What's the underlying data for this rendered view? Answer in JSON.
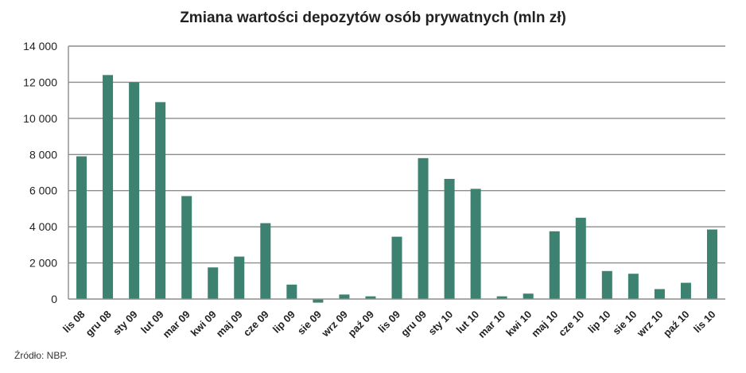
{
  "chart_data": {
    "type": "bar",
    "title": "Zmiana wartości depozytów osób prywatnych (mln zł)",
    "xlabel": "",
    "ylabel": "",
    "ylim": [
      0,
      14000
    ],
    "yticks": [
      0,
      2000,
      4000,
      6000,
      8000,
      10000,
      12000,
      14000
    ],
    "ytick_labels": [
      "0",
      "2 000",
      "4 000",
      "6 000",
      "8 000",
      "10 000",
      "12 000",
      "14 000"
    ],
    "grid": true,
    "legend": "none",
    "color": "#3d8270",
    "categories": [
      "lis 08",
      "gru 08",
      "sty 09",
      "lut 09",
      "mar 09",
      "kwi 09",
      "maj 09",
      "cze 09",
      "lip 09",
      "sie 09",
      "wrz 09",
      "paź 09",
      "lis 09",
      "gru 09",
      "sty 10",
      "lut 10",
      "mar 10",
      "kwi 10",
      "maj 10",
      "cze 10",
      "lip 10",
      "sie 10",
      "wrz 10",
      "paź 10",
      "lis 10"
    ],
    "values": [
      7900,
      12400,
      12000,
      10900,
      5700,
      1750,
      2350,
      4200,
      800,
      -200,
      250,
      150,
      3450,
      7800,
      6650,
      6100,
      150,
      300,
      3750,
      4500,
      1550,
      1400,
      550,
      900,
      3850
    ]
  },
  "source": "Źródło: NBP."
}
